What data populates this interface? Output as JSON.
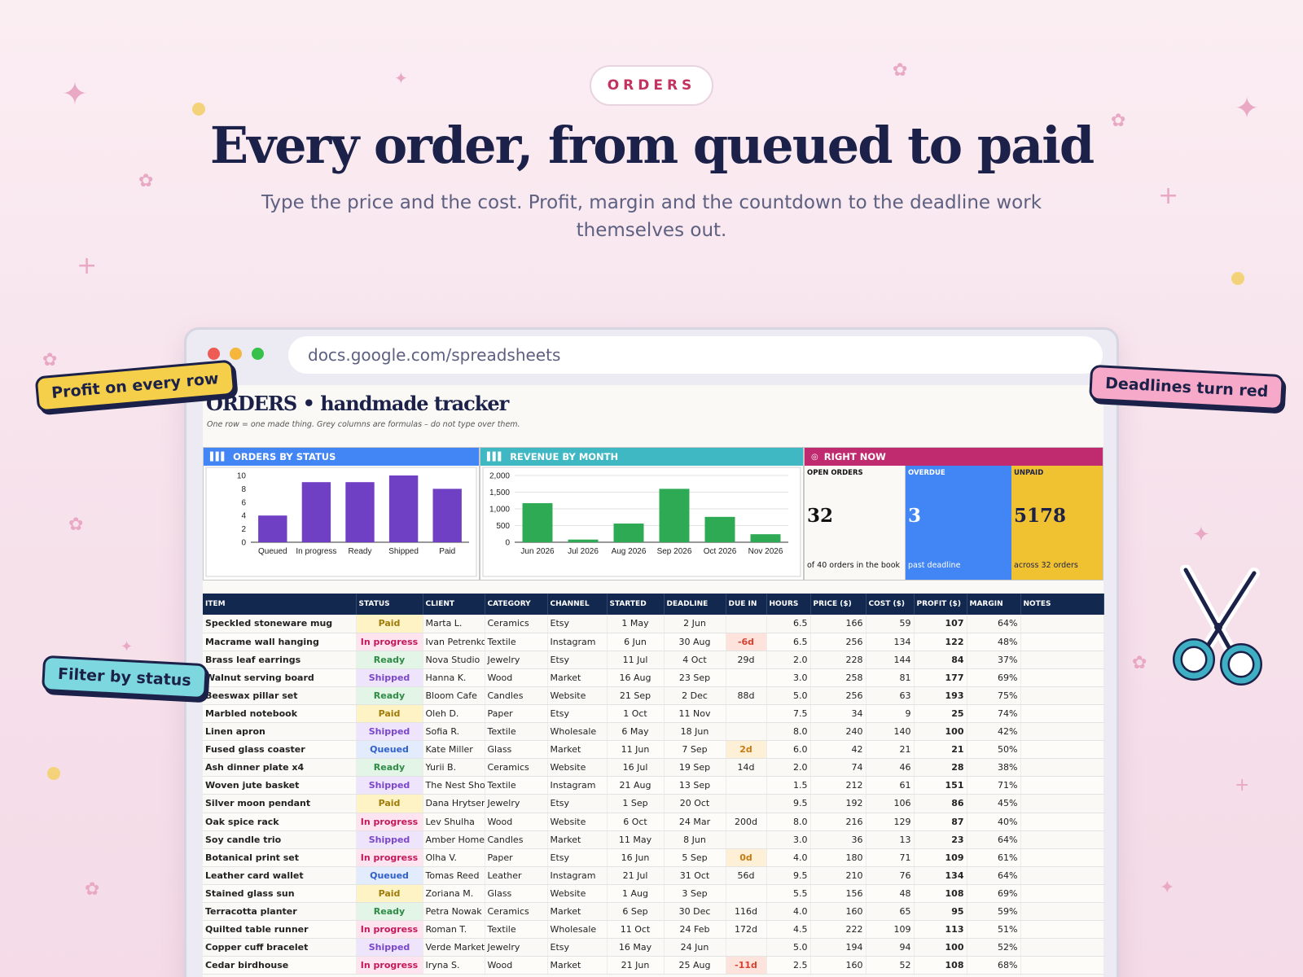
{
  "hero": {
    "eyebrow": "ORDERS",
    "headline": "Every order, from queued to paid",
    "subhead": "Type the price and the cost. Profit, margin and the countdown to the deadline work themselves out."
  },
  "browser": {
    "url": "docs.google.com/spreadsheets"
  },
  "callouts": {
    "profit": "Profit on every row",
    "deadlines": "Deadlines turn red",
    "filter": "Filter by status"
  },
  "sheet": {
    "title": "ORDERS  •  handmade tracker",
    "subtitle": "One row = one made thing. Grey columns are formulas – do not type over them."
  },
  "panels": {
    "status_header": "ORDERS BY STATUS",
    "revenue_header": "REVENUE BY MONTH",
    "now_header": "RIGHT NOW",
    "open_label": "OPEN ORDERS",
    "open_value": "32",
    "open_note": "of 40 orders in the book",
    "overdue_label": "OVERDUE",
    "overdue_value": "3",
    "overdue_note": "past deadline",
    "unpaid_label": "UNPAID",
    "unpaid_value": "5178",
    "unpaid_note": "across 32 orders"
  },
  "colors": {
    "status_bar": "#6f3fc4",
    "revenue_bar": "#2eaa55",
    "status_head": "#4285f4",
    "revenue_head": "#3fb8c4",
    "now_head": "#c02a6f",
    "overdue_bg": "#4285f4",
    "unpaid_bg": "#f0c232"
  },
  "chart_data": [
    {
      "type": "bar",
      "title": "ORDERS BY STATUS",
      "categories": [
        "Queued",
        "In progress",
        "Ready",
        "Shipped",
        "Paid"
      ],
      "values": [
        4,
        9,
        9,
        10,
        8
      ],
      "ylim": [
        0,
        10
      ],
      "yticks": [
        "0",
        "2",
        "4",
        "6",
        "8",
        "10"
      ],
      "grid": false
    },
    {
      "type": "bar",
      "title": "REVENUE BY MONTH",
      "categories": [
        "Jun 2026",
        "Jul 2026",
        "Aug 2026",
        "Sep 2026",
        "Oct 2026",
        "Nov 2026"
      ],
      "values": [
        1170,
        80,
        560,
        1600,
        760,
        240
      ],
      "ylim": [
        0,
        2000
      ],
      "yticks": [
        "0",
        "500",
        "1,000",
        "1,500",
        "2,000"
      ],
      "grid": true
    }
  ],
  "table": {
    "columns": [
      "ITEM",
      "STATUS",
      "CLIENT",
      "CATEGORY",
      "CHANNEL",
      "STARTED",
      "DEADLINE",
      "DUE IN",
      "HOURS",
      "PRICE ($)",
      "COST ($)",
      "PROFIT ($)",
      "MARGIN",
      "NOTES"
    ],
    "rows": [
      [
        "Speckled stoneware mug",
        "Paid",
        "Marta L.",
        "Ceramics",
        "Etsy",
        "1 May",
        "2 Jun",
        "",
        "6.5",
        "166",
        "59",
        "107",
        "64%",
        ""
      ],
      [
        "Macrame wall hanging",
        "In progress",
        "Ivan Petrenko",
        "Textile",
        "Instagram",
        "6 Jun",
        "30 Aug",
        "-6d",
        "6.5",
        "256",
        "134",
        "122",
        "48%",
        ""
      ],
      [
        "Brass leaf earrings",
        "Ready",
        "Nova Studio",
        "Jewelry",
        "Etsy",
        "11 Jul",
        "4 Oct",
        "29d",
        "2.0",
        "228",
        "144",
        "84",
        "37%",
        ""
      ],
      [
        "Walnut serving board",
        "Shipped",
        "Hanna K.",
        "Wood",
        "Market",
        "16 Aug",
        "23 Sep",
        "",
        "3.0",
        "258",
        "81",
        "177",
        "69%",
        ""
      ],
      [
        "Beeswax pillar set",
        "Ready",
        "Bloom Cafe",
        "Candles",
        "Website",
        "21 Sep",
        "2 Dec",
        "88d",
        "5.0",
        "256",
        "63",
        "193",
        "75%",
        ""
      ],
      [
        "Marbled notebook",
        "Paid",
        "Oleh D.",
        "Paper",
        "Etsy",
        "1 Oct",
        "11 Nov",
        "",
        "7.5",
        "34",
        "9",
        "25",
        "74%",
        ""
      ],
      [
        "Linen apron",
        "Shipped",
        "Sofia R.",
        "Textile",
        "Wholesale",
        "6 May",
        "18 Jun",
        "",
        "8.0",
        "240",
        "140",
        "100",
        "42%",
        ""
      ],
      [
        "Fused glass coaster",
        "Queued",
        "Kate Miller",
        "Glass",
        "Market",
        "11 Jun",
        "7 Sep",
        "2d",
        "6.0",
        "42",
        "21",
        "21",
        "50%",
        ""
      ],
      [
        "Ash dinner plate x4",
        "Ready",
        "Yurii B.",
        "Ceramics",
        "Website",
        "16 Jul",
        "19 Sep",
        "14d",
        "2.0",
        "74",
        "46",
        "28",
        "38%",
        ""
      ],
      [
        "Woven jute basket",
        "Shipped",
        "The Nest Shop",
        "Textile",
        "Instagram",
        "21 Aug",
        "13 Sep",
        "",
        "1.5",
        "212",
        "61",
        "151",
        "71%",
        ""
      ],
      [
        "Silver moon pendant",
        "Paid",
        "Dana Hrytsenko",
        "Jewelry",
        "Etsy",
        "1 Sep",
        "20 Oct",
        "",
        "9.5",
        "192",
        "106",
        "86",
        "45%",
        ""
      ],
      [
        "Oak spice rack",
        "In progress",
        "Lev Shulha",
        "Wood",
        "Website",
        "6 Oct",
        "24 Mar",
        "200d",
        "8.0",
        "216",
        "129",
        "87",
        "40%",
        ""
      ],
      [
        "Soy candle trio",
        "Shipped",
        "Amber Home",
        "Candles",
        "Market",
        "11 May",
        "8 Jun",
        "",
        "3.0",
        "36",
        "13",
        "23",
        "64%",
        ""
      ],
      [
        "Botanical print set",
        "In progress",
        "Olha V.",
        "Paper",
        "Etsy",
        "16 Jun",
        "5 Sep",
        "0d",
        "4.0",
        "180",
        "71",
        "109",
        "61%",
        ""
      ],
      [
        "Leather card wallet",
        "Queued",
        "Tomas Reed",
        "Leather",
        "Instagram",
        "21 Jul",
        "31 Oct",
        "56d",
        "9.5",
        "210",
        "76",
        "134",
        "64%",
        ""
      ],
      [
        "Stained glass sun",
        "Paid",
        "Zoriana M.",
        "Glass",
        "Website",
        "1 Aug",
        "3 Sep",
        "",
        "5.5",
        "156",
        "48",
        "108",
        "69%",
        ""
      ],
      [
        "Terracotta planter",
        "Ready",
        "Petra Nowak",
        "Ceramics",
        "Market",
        "6 Sep",
        "30 Dec",
        "116d",
        "4.0",
        "160",
        "65",
        "95",
        "59%",
        ""
      ],
      [
        "Quilted table runner",
        "In progress",
        "Roman T.",
        "Textile",
        "Wholesale",
        "11 Oct",
        "24 Feb",
        "172d",
        "4.5",
        "222",
        "109",
        "113",
        "51%",
        ""
      ],
      [
        "Copper cuff bracelet",
        "Shipped",
        "Verde Market",
        "Jewelry",
        "Etsy",
        "16 May",
        "24 Jun",
        "",
        "5.0",
        "194",
        "94",
        "100",
        "52%",
        ""
      ],
      [
        "Cedar birdhouse",
        "In progress",
        "Iryna S.",
        "Wood",
        "Market",
        "21 Jun",
        "25 Aug",
        "-11d",
        "2.5",
        "160",
        "52",
        "108",
        "68%",
        ""
      ]
    ]
  },
  "status_styles": {
    "Paid": {
      "bg": "#fdf3c4",
      "fg": "#a07c0b"
    },
    "In progress": {
      "bg": "#fde4ef",
      "fg": "#c2185b"
    },
    "Ready": {
      "bg": "#e2f5e6",
      "fg": "#2e8b46"
    },
    "Shipped": {
      "bg": "#eee4fb",
      "fg": "#7b47c9"
    },
    "Queued": {
      "bg": "#e3ecfd",
      "fg": "#3060c8"
    }
  }
}
